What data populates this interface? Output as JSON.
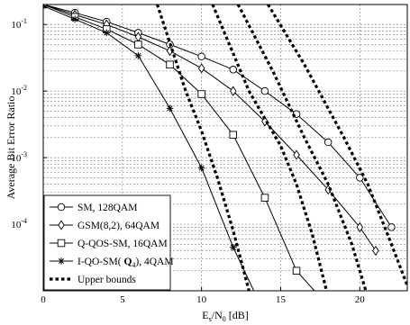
{
  "chart_data": {
    "type": "line",
    "xlabel_main": "E",
    "xlabel_sub1": "s",
    "xlabel_mid": "/N",
    "xlabel_sub2": "0",
    "xlabel_unit": " [dB]",
    "ylabel": "Average Bit Error Ratio",
    "xlim": [
      0,
      23
    ],
    "ylim_exp": [
      -5,
      -0.7
    ],
    "log_y": true,
    "grid": true,
    "x_ticks": [
      0,
      5,
      10,
      15,
      20
    ],
    "y_ticks": [
      {
        "exp": -1,
        "base": "10",
        "sup": "-1"
      },
      {
        "exp": -2,
        "base": "10",
        "sup": "-2"
      },
      {
        "exp": -3,
        "base": "10",
        "sup": "-3"
      },
      {
        "exp": -4,
        "base": "10",
        "sup": "-4"
      }
    ],
    "legend_position": "bottom-left",
    "series": [
      {
        "name": "SM, 128QAM",
        "marker": "circle",
        "dash": false,
        "x": [
          0,
          2,
          4,
          6,
          8,
          10,
          12,
          14,
          16,
          18,
          20,
          22
        ],
        "y": [
          0.2,
          0.15,
          0.11,
          0.075,
          0.05,
          0.033,
          0.021,
          0.01,
          0.0045,
          0.0017,
          0.0005,
          9e-05
        ]
      },
      {
        "name": "GSM(8,2), 64QAM",
        "marker": "diamond",
        "dash": false,
        "x": [
          0,
          2,
          4,
          6,
          8,
          10,
          12,
          14,
          16,
          18,
          20,
          21
        ],
        "y": [
          0.2,
          0.14,
          0.1,
          0.065,
          0.04,
          0.022,
          0.01,
          0.0035,
          0.0011,
          0.00033,
          9e-05,
          4e-05
        ]
      },
      {
        "name": "Q-QOS-SM, 16QAM",
        "marker": "square",
        "dash": false,
        "x": [
          0,
          2,
          4,
          6,
          8,
          10,
          12,
          14,
          16,
          17.5
        ],
        "y": [
          0.2,
          0.13,
          0.085,
          0.05,
          0.025,
          0.009,
          0.0022,
          0.00025,
          2e-05,
          8e-06
        ]
      },
      {
        "name": "I-QO-SM( Q4), 4QAM",
        "name_main": "I-QO-SM(",
        "name_bold": "Q",
        "name_sub": "4",
        "name_tail": "), 4QAM",
        "marker": "star",
        "dash": false,
        "x": [
          0,
          2,
          4,
          6,
          8,
          10,
          12,
          13.5
        ],
        "y": [
          0.19,
          0.12,
          0.075,
          0.034,
          0.0055,
          0.0007,
          4.5e-05,
          8e-06
        ]
      },
      {
        "name": "Upper bounds",
        "marker": "none",
        "dash": true,
        "x": [
          7.2,
          9,
          10,
          11,
          12,
          13,
          13.8
        ],
        "y": [
          0.2,
          0.01,
          0.0025,
          0.0005,
          8e-05,
          1e-05,
          8e-06
        ]
      },
      {
        "name": "",
        "marker": "none",
        "dash": true,
        "x": [
          10.7,
          13,
          15,
          16,
          17,
          18
        ],
        "y": [
          0.2,
          0.01,
          0.0015,
          0.0004,
          7e-05,
          8e-06
        ]
      },
      {
        "name": "",
        "marker": "none",
        "dash": true,
        "x": [
          12.3,
          14.5,
          16.5,
          18,
          19.5,
          20.5
        ],
        "y": [
          0.2,
          0.02,
          0.002,
          0.0004,
          5e-05,
          8e-06
        ]
      },
      {
        "name": "",
        "marker": "none",
        "dash": true,
        "x": [
          14.2,
          16.5,
          19,
          20.5,
          22,
          23
        ],
        "y": [
          0.2,
          0.025,
          0.002,
          0.0004,
          5e-05,
          1.2e-05
        ]
      }
    ]
  }
}
